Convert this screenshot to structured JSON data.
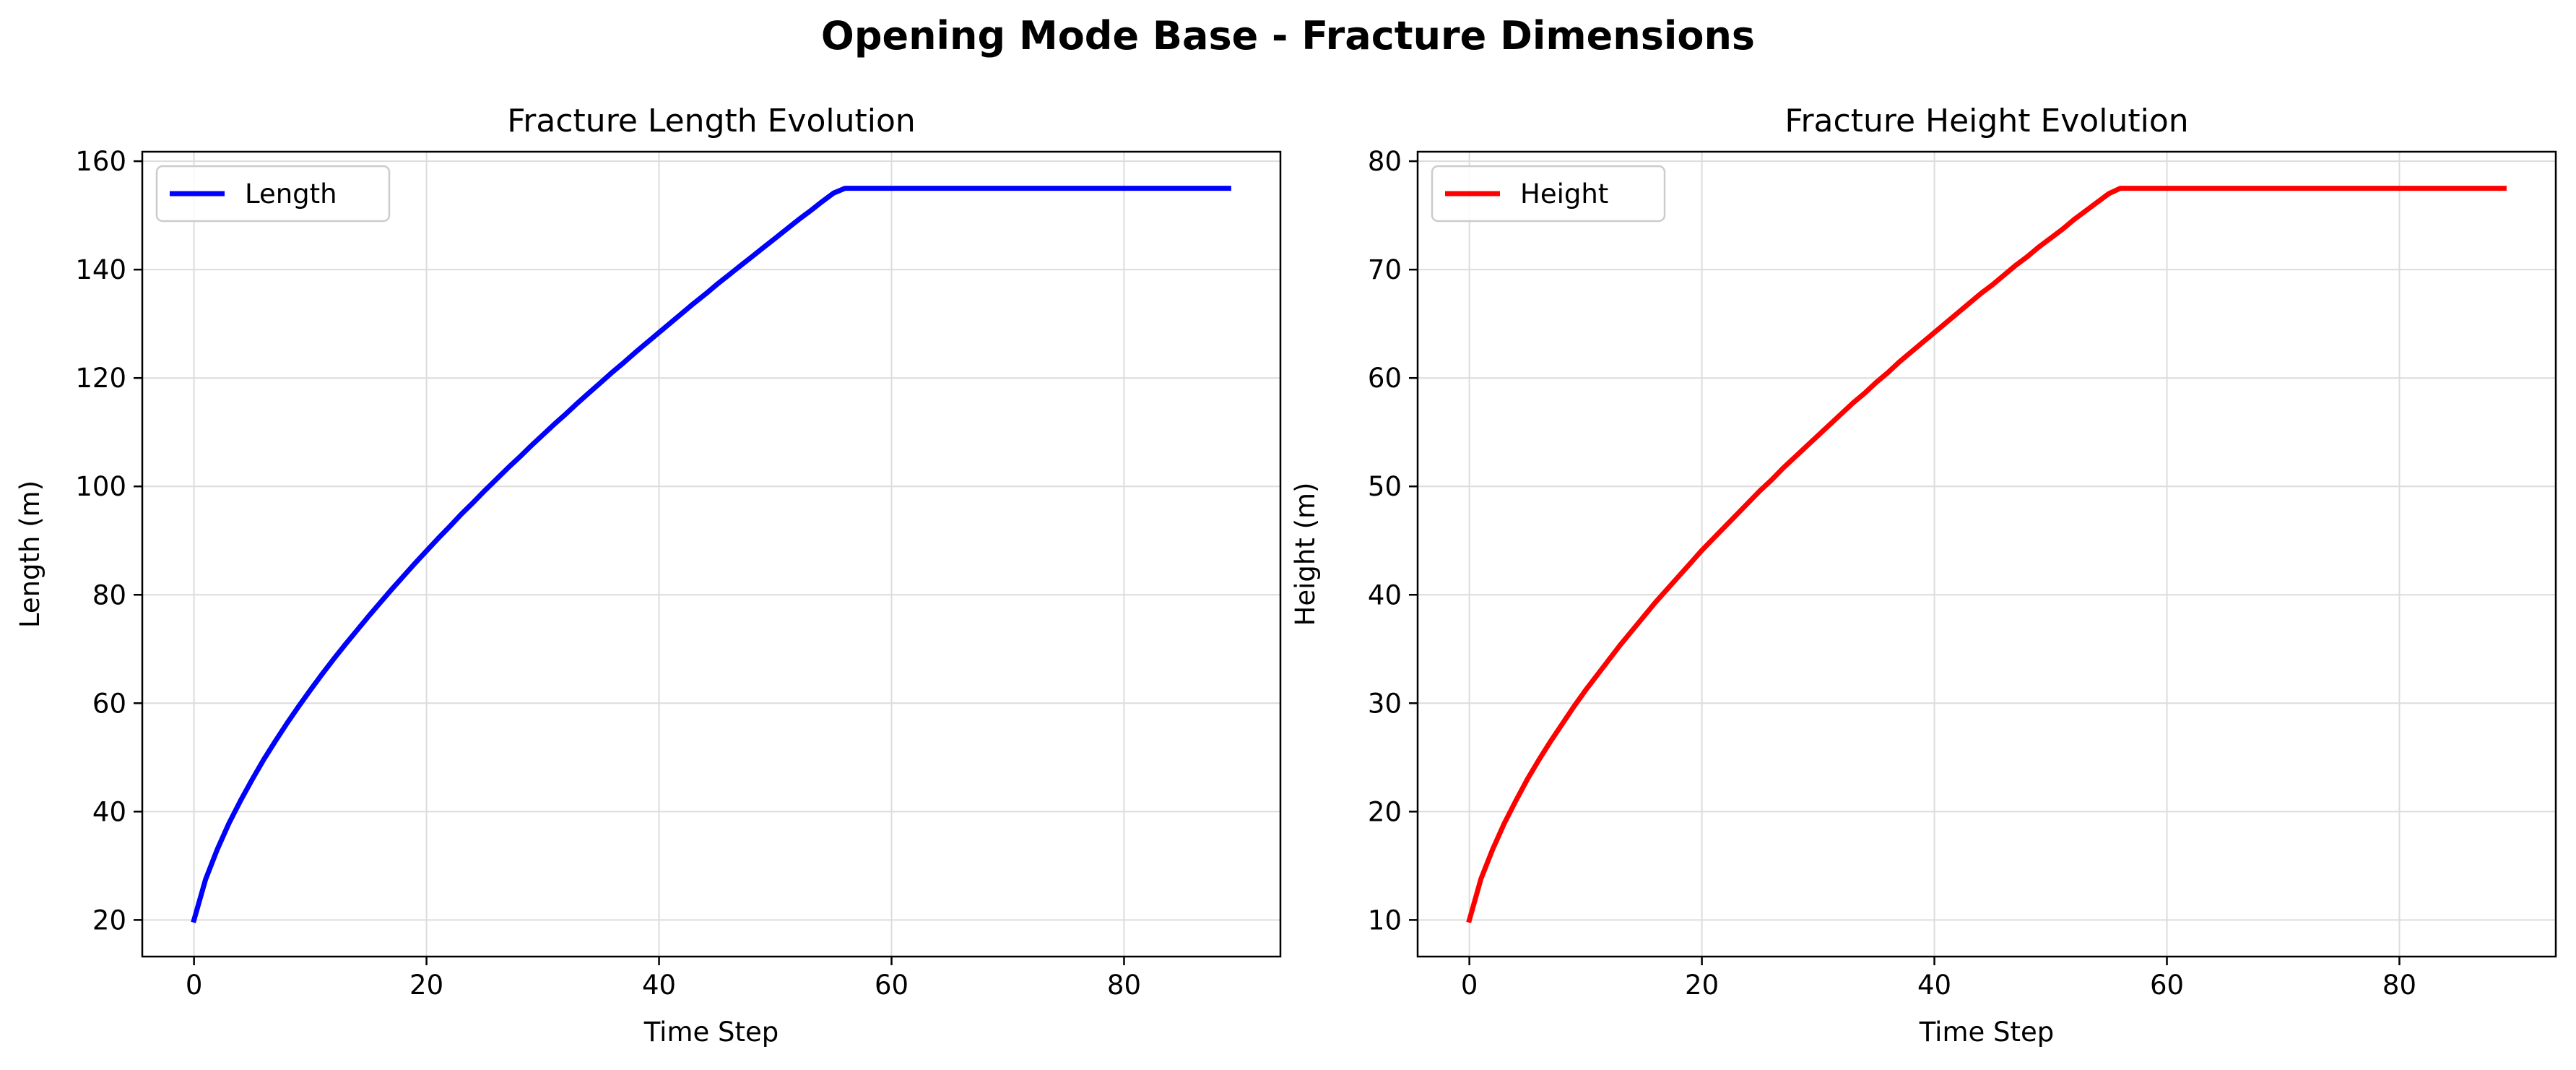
{
  "figure_title": "Opening Mode Base - Fracture Dimensions",
  "chart_data": [
    {
      "type": "line",
      "title": "Fracture Length Evolution",
      "xlabel": "Time Step",
      "ylabel": "Length (m)",
      "xlim": [
        -4.45,
        93.45
      ],
      "ylim": [
        13.25,
        161.75
      ],
      "xticks": [
        0,
        20,
        40,
        60,
        80
      ],
      "yticks": [
        20,
        40,
        60,
        80,
        100,
        120,
        140,
        160
      ],
      "grid": true,
      "legend_position": "upper-left",
      "series": [
        {
          "name": "Length",
          "color": "#0000ff",
          "x": [
            0,
            1,
            2,
            3,
            4,
            5,
            6,
            7,
            8,
            9,
            10,
            11,
            12,
            13,
            14,
            15,
            16,
            17,
            18,
            19,
            20,
            21,
            22,
            23,
            24,
            25,
            26,
            27,
            28,
            29,
            30,
            31,
            32,
            33,
            34,
            35,
            36,
            37,
            38,
            39,
            40,
            41,
            42,
            43,
            44,
            45,
            46,
            47,
            48,
            49,
            50,
            51,
            52,
            53,
            54,
            55,
            56,
            57,
            58,
            59,
            60,
            61,
            62,
            63,
            64,
            65,
            66,
            67,
            68,
            69,
            70,
            71,
            72,
            73,
            74,
            75,
            76,
            77,
            78,
            79,
            80,
            81,
            82,
            83,
            84,
            85,
            86,
            87,
            88,
            89
          ],
          "y": [
            20.0,
            27.5,
            33.0,
            37.8,
            42.0,
            45.9,
            49.6,
            53.0,
            56.3,
            59.4,
            62.4,
            65.3,
            68.1,
            70.8,
            73.4,
            76.0,
            78.5,
            81.0,
            83.4,
            85.8,
            88.1,
            90.4,
            92.6,
            94.9,
            97.0,
            99.2,
            101.3,
            103.4,
            105.4,
            107.5,
            109.5,
            111.5,
            113.4,
            115.4,
            117.3,
            119.2,
            121.1,
            122.9,
            124.8,
            126.6,
            128.4,
            130.2,
            132.0,
            133.8,
            135.5,
            137.3,
            139.0,
            140.7,
            142.4,
            144.1,
            145.8,
            147.5,
            149.2,
            150.8,
            152.5,
            154.1,
            155.0,
            155.0,
            155.0,
            155.0,
            155.0,
            155.0,
            155.0,
            155.0,
            155.0,
            155.0,
            155.0,
            155.0,
            155.0,
            155.0,
            155.0,
            155.0,
            155.0,
            155.0,
            155.0,
            155.0,
            155.0,
            155.0,
            155.0,
            155.0,
            155.0,
            155.0,
            155.0,
            155.0,
            155.0,
            155.0,
            155.0,
            155.0,
            155.0,
            155.0
          ]
        }
      ]
    },
    {
      "type": "line",
      "title": "Fracture Height Evolution",
      "xlabel": "Time Step",
      "ylabel": "Height (m)",
      "xlim": [
        -4.45,
        93.45
      ],
      "ylim": [
        6.625,
        80.875
      ],
      "xticks": [
        0,
        20,
        40,
        60,
        80
      ],
      "yticks": [
        10,
        20,
        30,
        40,
        50,
        60,
        70,
        80
      ],
      "grid": true,
      "legend_position": "upper-left",
      "series": [
        {
          "name": "Height",
          "color": "#ff0000",
          "x": [
            0,
            1,
            2,
            3,
            4,
            5,
            6,
            7,
            8,
            9,
            10,
            11,
            12,
            13,
            14,
            15,
            16,
            17,
            18,
            19,
            20,
            21,
            22,
            23,
            24,
            25,
            26,
            27,
            28,
            29,
            30,
            31,
            32,
            33,
            34,
            35,
            36,
            37,
            38,
            39,
            40,
            41,
            42,
            43,
            44,
            45,
            46,
            47,
            48,
            49,
            50,
            51,
            52,
            53,
            54,
            55,
            56,
            57,
            58,
            59,
            60,
            61,
            62,
            63,
            64,
            65,
            66,
            67,
            68,
            69,
            70,
            71,
            72,
            73,
            74,
            75,
            76,
            77,
            78,
            79,
            80,
            81,
            82,
            83,
            84,
            85,
            86,
            87,
            88,
            89
          ],
          "y": [
            10.0,
            13.8,
            16.5,
            18.9,
            21.0,
            23.0,
            24.8,
            26.5,
            28.1,
            29.7,
            31.2,
            32.6,
            34.0,
            35.4,
            36.7,
            38.0,
            39.3,
            40.5,
            41.7,
            42.9,
            44.1,
            45.2,
            46.3,
            47.4,
            48.5,
            49.6,
            50.6,
            51.7,
            52.7,
            53.7,
            54.7,
            55.7,
            56.7,
            57.7,
            58.6,
            59.6,
            60.5,
            61.5,
            62.4,
            63.3,
            64.2,
            65.1,
            66.0,
            66.9,
            67.8,
            68.6,
            69.5,
            70.4,
            71.2,
            72.1,
            72.9,
            73.7,
            74.6,
            75.4,
            76.2,
            77.0,
            77.5,
            77.5,
            77.5,
            77.5,
            77.5,
            77.5,
            77.5,
            77.5,
            77.5,
            77.5,
            77.5,
            77.5,
            77.5,
            77.5,
            77.5,
            77.5,
            77.5,
            77.5,
            77.5,
            77.5,
            77.5,
            77.5,
            77.5,
            77.5,
            77.5,
            77.5,
            77.5,
            77.5,
            77.5,
            77.5,
            77.5,
            77.5,
            77.5,
            77.5
          ]
        }
      ]
    }
  ]
}
